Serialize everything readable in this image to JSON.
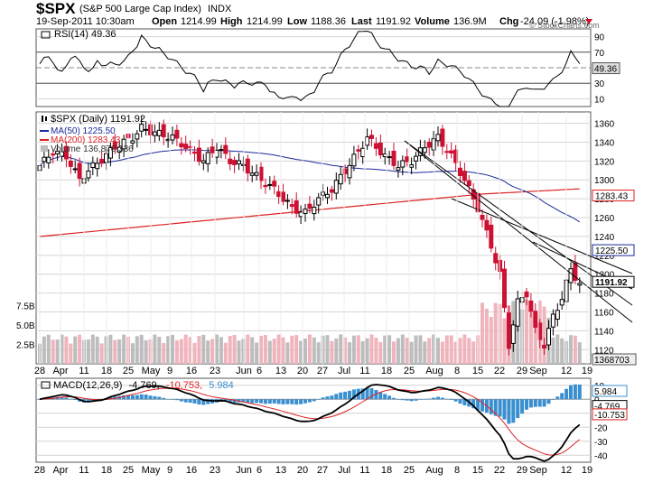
{
  "header": {
    "symbol": "$SPX",
    "name": "(S&P 500 Large Cap Index)",
    "exchange": "INDX",
    "date_time": "19-Sep-2011 10:30am",
    "open_label": "Open",
    "open": "1214.99",
    "high_label": "High",
    "high": "1214.99",
    "low_label": "Low",
    "low": "1188.36",
    "last_label": "Last",
    "last": "1191.92",
    "volume_label": "Volume",
    "volume": "136.9M",
    "chg_label": "Chg",
    "chg": "-24.09 (-1.98%)",
    "watermark": "© StockCharts.com"
  },
  "colors": {
    "up": "#000000",
    "down": "#cc1133",
    "ma50": "#1a2a9a",
    "ma200": "#dd2222",
    "vol_up": "#bdbdbd",
    "vol_down": "#f0b4bc",
    "macd_hist": "#3a8fd0",
    "macd_line": "#000000",
    "macd_signal": "#dd2222",
    "rsi_line": "#000000",
    "rsi_fill": "#7a4e6a",
    "grid": "#d4d4d4",
    "dash": "#888888"
  },
  "chart_data": {
    "type": "candlestick",
    "x_tick_labels": [
      "28",
      "Apr",
      "11",
      "18",
      "25",
      "May",
      "9",
      "16",
      "23",
      "Jun",
      "6",
      "13",
      "20",
      "27",
      "Jul",
      "11",
      "18",
      "25",
      "Aug",
      "8",
      "15",
      "22",
      "29",
      "Sep",
      "12",
      "19"
    ],
    "rsi_panel": {
      "legend": "RSI(14) 49.36",
      "last": "49.36",
      "y_ticks": [
        "90",
        "70",
        "50",
        "30",
        "10"
      ],
      "levels": [
        70,
        30
      ],
      "ylim": [
        0,
        100
      ]
    },
    "price_panel": {
      "legend": "$SPX (Daily) 1191.92",
      "ma50_legend": "MA(50) 1225.50",
      "ma200_legend": "MA(200) 1283.43",
      "volume_legend": "Volume 136,870,336",
      "y_ticks": [
        "1360",
        "1340",
        "1320",
        "1300",
        "1280",
        "1260",
        "1240",
        "1220",
        "1200",
        "1180",
        "1160",
        "1140",
        "1120"
      ],
      "ylim": [
        1105,
        1372
      ],
      "volume_ticks": [
        "7.5B",
        "5.0B",
        "2.5B"
      ],
      "volume_max": 10.5,
      "tags": {
        "ma200": "1283.43",
        "ma50": "1225.50",
        "last": "1191.92",
        "volume": "1368703"
      }
    },
    "macd_panel": {
      "legend_name": "MACD(12,26,9)",
      "legend_macd": "-4.769,",
      "legend_signal": "-10.753,",
      "legend_hist": "5.984",
      "y_ticks": [
        "10",
        "0",
        "-10",
        "-20",
        "-30",
        "-40"
      ],
      "ylim": [
        -45,
        15
      ],
      "tags": {
        "hist": "5.984",
        "macd": "-4.769",
        "signal": "-10.753"
      }
    }
  }
}
